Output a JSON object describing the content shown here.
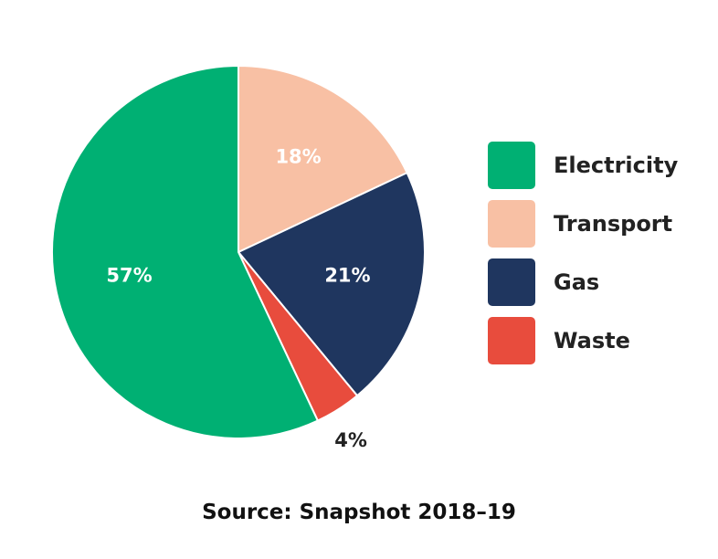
{
  "chart_data": {
    "type": "pie",
    "slices": [
      {
        "label": "Transport",
        "value": 18,
        "display": "18%",
        "color": "#F8C0A4",
        "label_color": "#ffffff"
      },
      {
        "label": "Gas",
        "value": 21,
        "display": "21%",
        "color": "#1F365F",
        "label_color": "#ffffff"
      },
      {
        "label": "Waste",
        "value": 4,
        "display": "4%",
        "color": "#E84C3D",
        "label_color": "#222222",
        "label_outside": true
      },
      {
        "label": "Electricity",
        "value": 57,
        "display": "57%",
        "color": "#00B073",
        "label_color": "#ffffff"
      }
    ],
    "legend_placement": "right"
  },
  "legend": {
    "items": [
      {
        "label": "Electricity",
        "color": "#00B073"
      },
      {
        "label": "Transport",
        "color": "#F8C0A4"
      },
      {
        "label": "Gas",
        "color": "#1F365F"
      },
      {
        "label": "Waste",
        "color": "#E84C3D"
      }
    ]
  },
  "source": "Source: Snapshot 2018–19"
}
